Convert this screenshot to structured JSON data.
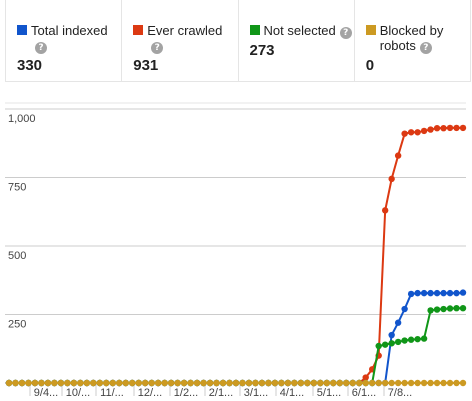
{
  "legend": [
    {
      "label": "Total indexed",
      "value": "330",
      "color": "#1155cc",
      "icon": "help-icon"
    },
    {
      "label": "Ever crawled",
      "value": "931",
      "color": "#dc3912",
      "icon": "help-icon"
    },
    {
      "label": "Not selected",
      "value": "273",
      "color": "#109618",
      "icon": "help-icon"
    },
    {
      "label": "Blocked by robots",
      "value": "0",
      "color": "#cc9a22",
      "icon": "help-icon"
    }
  ],
  "help_glyph": "?",
  "chart_data": {
    "type": "line",
    "title": "",
    "xlabel": "",
    "ylabel": "",
    "ylim": [
      0,
      1000
    ],
    "y_ticks": [
      "1,000",
      "750",
      "500",
      "250"
    ],
    "y_tick_values": [
      1000,
      750,
      500,
      250
    ],
    "x_tick_labels": [
      "9/4...",
      "10/...",
      "11/...",
      "12/...",
      "1/2...",
      "2/1...",
      "3/1...",
      "4/1...",
      "5/1...",
      "6/1...",
      "7/8..."
    ],
    "grid": true,
    "series": [
      {
        "name": "Total indexed",
        "color": "#1155cc",
        "values": [
          0,
          0,
          0,
          0,
          0,
          0,
          0,
          0,
          0,
          0,
          0,
          0,
          0,
          0,
          0,
          0,
          0,
          0,
          0,
          0,
          0,
          0,
          0,
          0,
          0,
          0,
          0,
          0,
          0,
          0,
          0,
          0,
          0,
          0,
          0,
          0,
          0,
          0,
          0,
          0,
          0,
          0,
          0,
          0,
          0,
          0,
          0,
          0,
          0,
          0,
          0,
          0,
          0,
          0,
          0,
          0,
          0,
          0,
          0,
          175,
          220,
          270,
          325,
          328,
          328,
          328,
          328,
          328,
          328,
          328,
          330
        ]
      },
      {
        "name": "Ever crawled",
        "color": "#dc3912",
        "values": [
          0,
          0,
          0,
          0,
          0,
          0,
          0,
          0,
          0,
          0,
          0,
          0,
          0,
          0,
          0,
          0,
          0,
          0,
          0,
          0,
          0,
          0,
          0,
          0,
          0,
          0,
          0,
          0,
          0,
          0,
          0,
          0,
          0,
          0,
          0,
          0,
          0,
          0,
          0,
          0,
          0,
          0,
          0,
          0,
          0,
          0,
          0,
          0,
          0,
          0,
          0,
          0,
          0,
          0,
          0,
          20,
          50,
          100,
          630,
          745,
          830,
          910,
          915,
          915,
          920,
          925,
          930,
          930,
          931,
          931,
          931
        ]
      },
      {
        "name": "Not selected",
        "color": "#109618",
        "values": [
          0,
          0,
          0,
          0,
          0,
          0,
          0,
          0,
          0,
          0,
          0,
          0,
          0,
          0,
          0,
          0,
          0,
          0,
          0,
          0,
          0,
          0,
          0,
          0,
          0,
          0,
          0,
          0,
          0,
          0,
          0,
          0,
          0,
          0,
          0,
          0,
          0,
          0,
          0,
          0,
          0,
          0,
          0,
          0,
          0,
          0,
          0,
          0,
          0,
          0,
          0,
          0,
          0,
          0,
          0,
          0,
          0,
          135,
          140,
          145,
          150,
          155,
          158,
          160,
          162,
          265,
          268,
          270,
          272,
          273,
          273
        ]
      },
      {
        "name": "Blocked by robots",
        "color": "#cc9a22",
        "values": [
          0,
          0,
          0,
          0,
          0,
          0,
          0,
          0,
          0,
          0,
          0,
          0,
          0,
          0,
          0,
          0,
          0,
          0,
          0,
          0,
          0,
          0,
          0,
          0,
          0,
          0,
          0,
          0,
          0,
          0,
          0,
          0,
          0,
          0,
          0,
          0,
          0,
          0,
          0,
          0,
          0,
          0,
          0,
          0,
          0,
          0,
          0,
          0,
          0,
          0,
          0,
          0,
          0,
          0,
          0,
          0,
          0,
          0,
          0,
          0,
          0,
          0,
          0,
          0,
          0,
          0,
          0,
          0,
          0,
          0,
          0
        ]
      }
    ]
  }
}
